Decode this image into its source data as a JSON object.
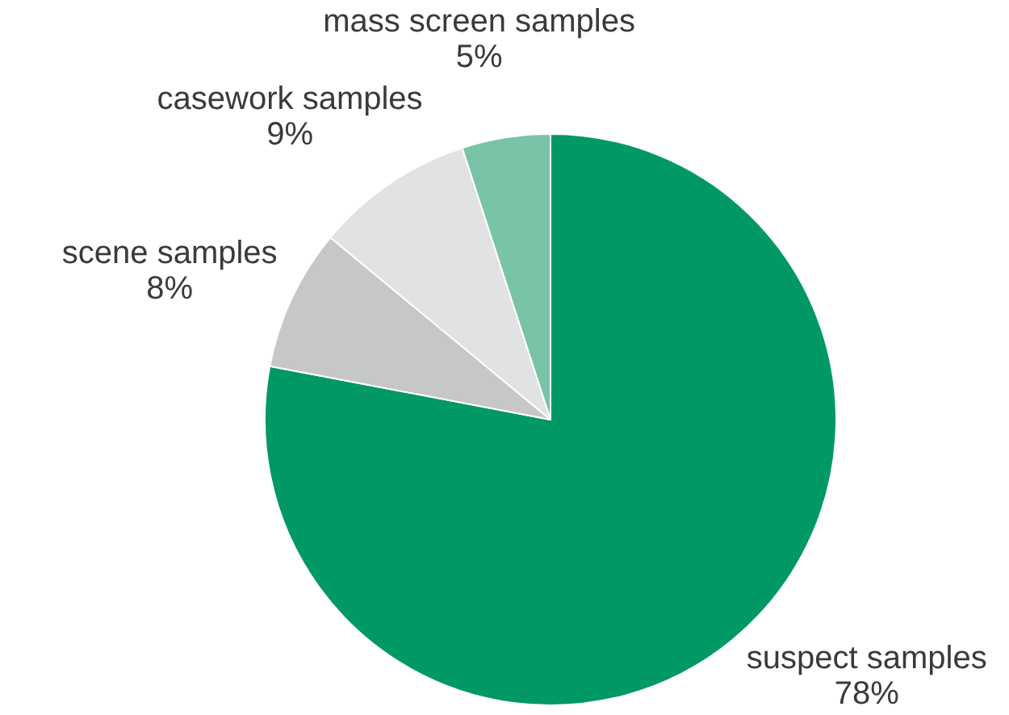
{
  "chart_data": {
    "type": "pie",
    "categories": [
      "suspect samples",
      "scene samples",
      "casework samples",
      "mass screen samples"
    ],
    "values": [
      78,
      8,
      9,
      5
    ],
    "colors": [
      "#009966",
      "#c6c7c9",
      "#e1e2e4",
      "#79c3a6"
    ],
    "value_labels": [
      "78%",
      "8%",
      "9%",
      "5%"
    ],
    "legend": false
  }
}
